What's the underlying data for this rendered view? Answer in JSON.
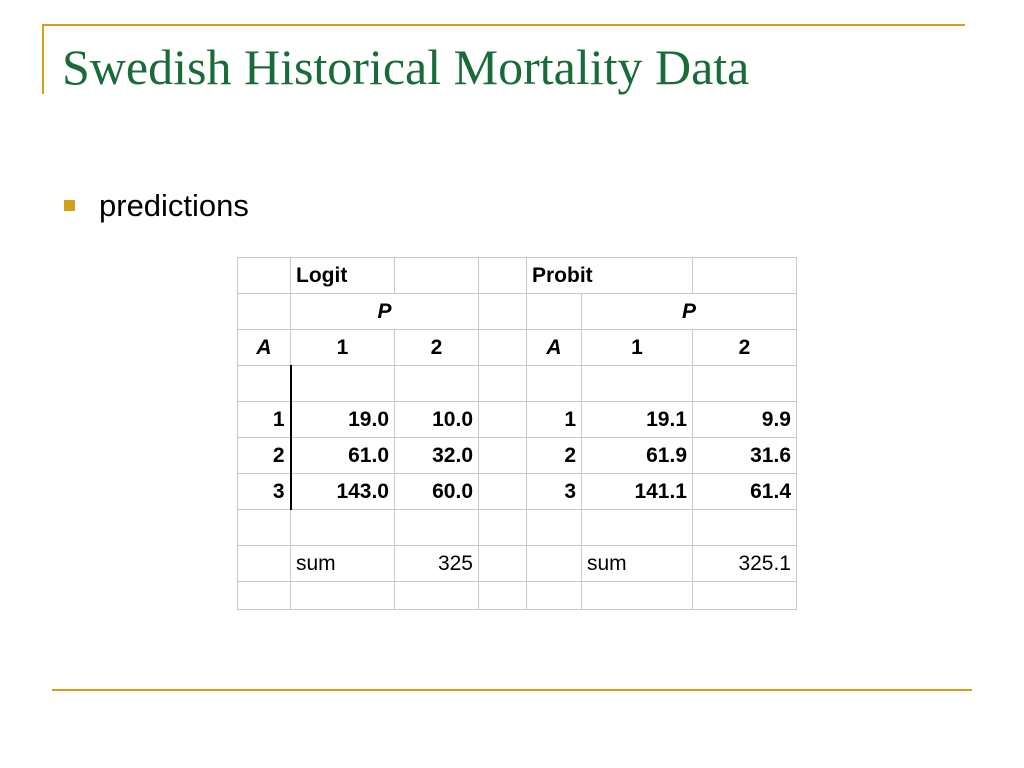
{
  "slide": {
    "title": "Swedish Historical Mortality Data",
    "bullet": "predictions"
  },
  "colors": {
    "title": "#1A6B3A",
    "accent": "#D4A017"
  },
  "table": {
    "logit_label": "Logit",
    "probit_label": "Probit",
    "p_label": "P",
    "a_label": "A",
    "col_1": "1",
    "col_2": "2",
    "rows": [
      {
        "a": "1",
        "logit_1": "19.0",
        "logit_2": "10.0",
        "probit_a": "1",
        "probit_1": "19.1",
        "probit_2": "9.9"
      },
      {
        "a": "2",
        "logit_1": "61.0",
        "logit_2": "32.0",
        "probit_a": "2",
        "probit_1": "61.9",
        "probit_2": "31.6"
      },
      {
        "a": "3",
        "logit_1": "143.0",
        "logit_2": "60.0",
        "probit_a": "3",
        "probit_1": "141.1",
        "probit_2": "61.4"
      }
    ],
    "sum_label": "sum",
    "logit_sum": "325",
    "probit_sum": "325.1"
  }
}
